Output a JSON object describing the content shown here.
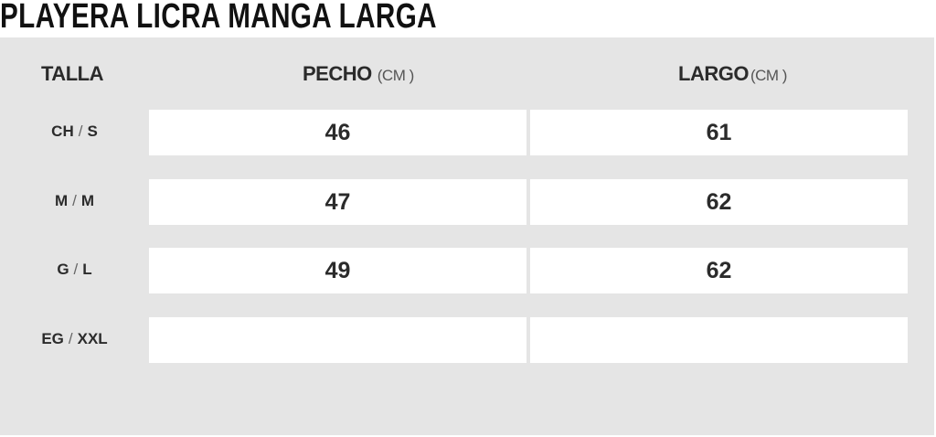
{
  "title": "PLAYERA LICRA MANGA LARGA",
  "headers": {
    "size": "TALLA",
    "chest": "PECHO",
    "chest_unit": "(CM )",
    "length": "LARGO",
    "length_unit": "(CM )"
  },
  "rows": [
    {
      "mx": "CH",
      "us": "S",
      "chest": "46",
      "length": "61"
    },
    {
      "mx": "M",
      "us": "M",
      "chest": "47",
      "length": "62"
    },
    {
      "mx": "G",
      "us": "L",
      "chest": "49",
      "length": "62"
    },
    {
      "mx": "EG",
      "us": "XXL",
      "chest": "",
      "length": ""
    }
  ],
  "slash": "/",
  "colors": {
    "panel": "#e5e5e5",
    "cell": "#ffffff",
    "text": "#2b2b2b"
  }
}
